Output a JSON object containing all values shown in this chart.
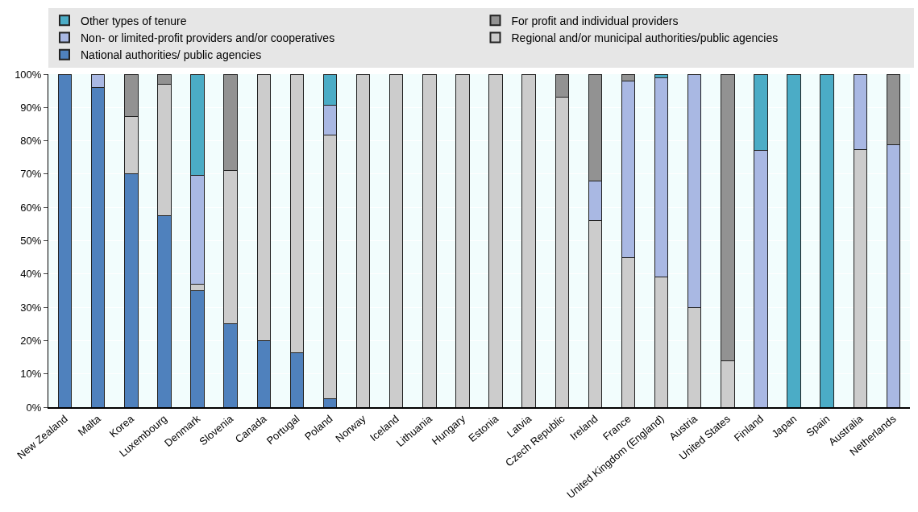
{
  "chart_data": {
    "type": "bar",
    "stacked": true,
    "categories": [
      "New Zealand",
      "Malta",
      "Korea",
      "Luxembourg",
      "Denmark",
      "Slovenia",
      "Canada",
      "Portugal",
      "Poland",
      "Norway",
      "Iceland",
      "Lithuania",
      "Hungary",
      "Estonia",
      "Latvia",
      "Czech Republic",
      "Ireland",
      "France",
      "United Kingdom (England)",
      "Austria",
      "United States",
      "Finland",
      "Japan",
      "Spain",
      "Australia",
      "Netherlands"
    ],
    "series": [
      {
        "name": "National authorities/ public agencies",
        "color": "#4f81bd",
        "values": [
          100,
          96,
          70,
          57.5,
          35,
          25,
          20,
          16.3,
          2.6,
          null,
          null,
          null,
          null,
          null,
          null,
          null,
          null,
          null,
          null,
          null,
          null,
          null,
          null,
          null,
          null,
          null
        ]
      },
      {
        "name": "Regional and/or municipal authorities/public agencies",
        "color": "#cccccc",
        "values": [
          null,
          null,
          17.3,
          39.5,
          2,
          46,
          80,
          83.7,
          79,
          100,
          100,
          100,
          100,
          100,
          100,
          93,
          56,
          45,
          39,
          30,
          14,
          null,
          null,
          null,
          77.3,
          null
        ]
      },
      {
        "name": "Non- or limited-profit providers and/or cooperatives",
        "color": "#a9b8e3",
        "values": [
          null,
          4,
          null,
          null,
          32.6,
          null,
          null,
          null,
          9,
          null,
          null,
          null,
          null,
          null,
          null,
          null,
          12,
          53,
          60,
          70,
          null,
          77,
          null,
          null,
          22.7,
          78.7
        ]
      },
      {
        "name": "For profit and individual providers",
        "color": "#929292",
        "values": [
          null,
          null,
          12.7,
          3,
          null,
          29,
          null,
          null,
          null,
          null,
          null,
          null,
          null,
          null,
          null,
          7,
          32,
          2,
          null,
          null,
          86,
          null,
          null,
          null,
          null,
          21.3
        ]
      },
      {
        "name": "Other types of tenure",
        "color": "#4bacc6",
        "values": [
          null,
          null,
          null,
          null,
          30.4,
          null,
          null,
          null,
          9.4,
          null,
          null,
          null,
          null,
          null,
          null,
          null,
          null,
          null,
          1,
          null,
          null,
          23,
          100,
          100,
          null,
          null
        ]
      }
    ],
    "ylim": [
      0,
      100
    ],
    "yticks": [
      {
        "value": 0,
        "label": "0%"
      },
      {
        "value": 10,
        "label": "10%"
      },
      {
        "value": 20,
        "label": "20%"
      },
      {
        "value": 30,
        "label": "30%"
      },
      {
        "value": 40,
        "label": "40%"
      },
      {
        "value": 50,
        "label": "50%"
      },
      {
        "value": 60,
        "label": "60%"
      },
      {
        "value": 70,
        "label": "70%"
      },
      {
        "value": 80,
        "label": "80%"
      },
      {
        "value": 90,
        "label": "90%"
      },
      {
        "value": 100,
        "label": "100%"
      }
    ],
    "grid": "y",
    "legend": "top"
  }
}
